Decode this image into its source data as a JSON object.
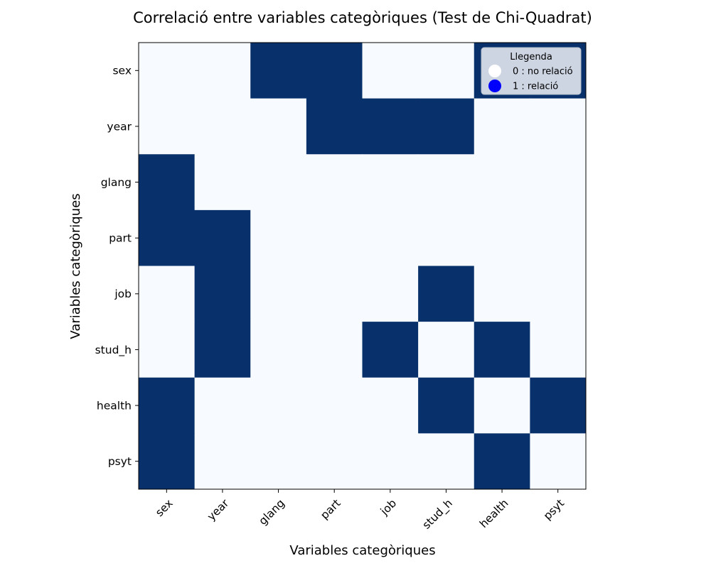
{
  "chart_data": {
    "type": "heatmap",
    "title": "Correlació entre variables categòriques (Test de Chi-Quadrat)",
    "xlabel": "Variables categòriques",
    "ylabel": "Variables categòriques",
    "x_categories": [
      "sex",
      "year",
      "glang",
      "part",
      "job",
      "stud_h",
      "health",
      "psyt"
    ],
    "y_categories": [
      "sex",
      "year",
      "glang",
      "part",
      "job",
      "stud_h",
      "health",
      "psyt"
    ],
    "values": [
      [
        0,
        0,
        1,
        1,
        0,
        0,
        1,
        1
      ],
      [
        0,
        0,
        0,
        1,
        1,
        1,
        0,
        0
      ],
      [
        1,
        0,
        0,
        0,
        0,
        0,
        0,
        0
      ],
      [
        1,
        1,
        0,
        0,
        0,
        0,
        0,
        0
      ],
      [
        0,
        1,
        0,
        0,
        0,
        1,
        0,
        0
      ],
      [
        0,
        1,
        0,
        0,
        1,
        0,
        1,
        0
      ],
      [
        1,
        0,
        0,
        0,
        0,
        1,
        0,
        1
      ],
      [
        1,
        0,
        0,
        0,
        0,
        0,
        1,
        0
      ]
    ],
    "colors": {
      "0": "#f7fbff",
      "1": "#08306b"
    },
    "legend": {
      "title": "Llegenda",
      "placement": "top-right",
      "entries": [
        {
          "label": "0 : no relació",
          "color": "#ffffff"
        },
        {
          "label": "1 : relació",
          "color": "#0000ff"
        }
      ]
    },
    "grid": false
  }
}
